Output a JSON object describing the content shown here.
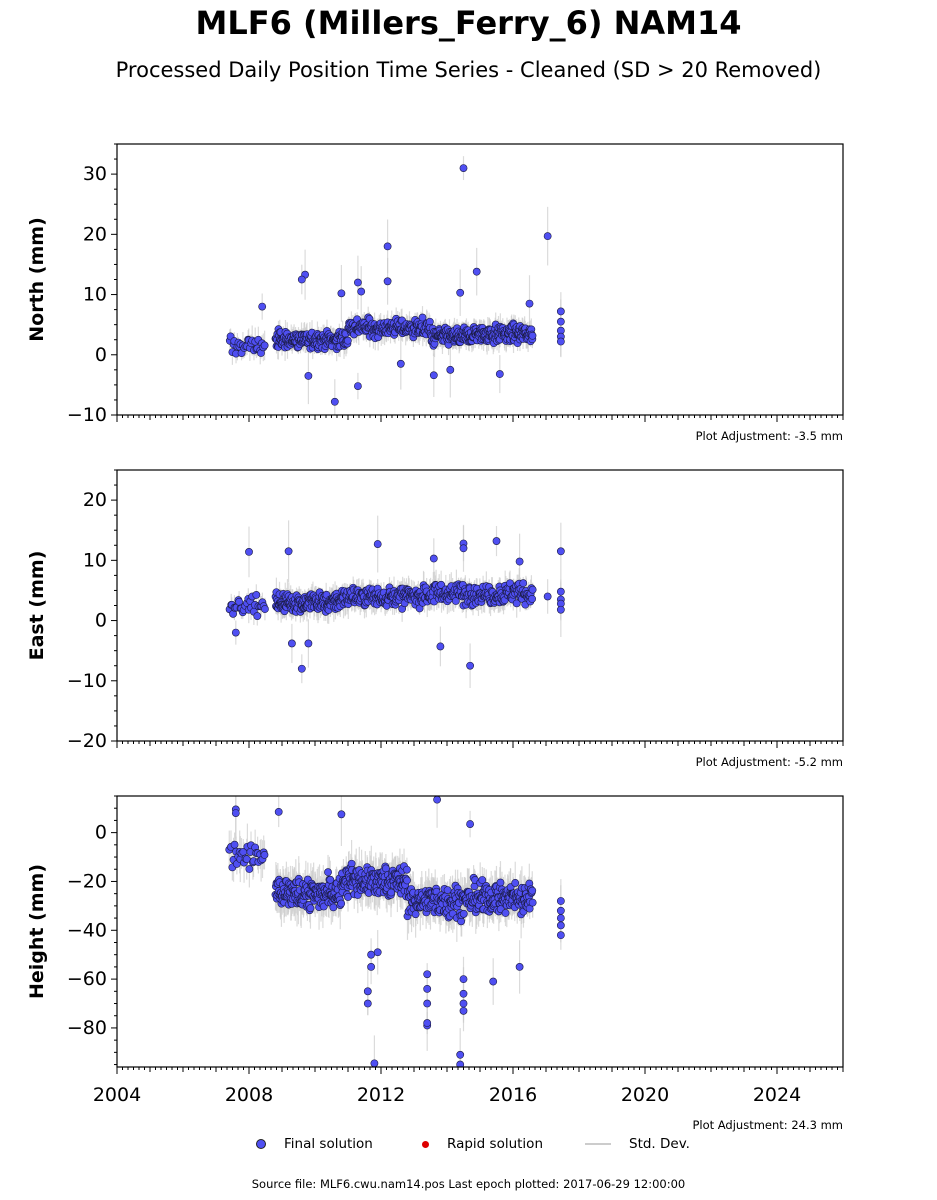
{
  "title": "MLF6 (Millers_Ferry_6) NAM14",
  "subtitle": "Processed Daily Position Time Series - Cleaned (SD > 20 Removed)",
  "chart_data": [
    {
      "type": "scatter",
      "ylabel": "North (mm)",
      "ylim": [
        -10,
        35
      ],
      "yticks": [
        -10,
        0,
        10,
        20,
        30
      ],
      "xlim": [
        2004,
        2026
      ],
      "adjustment": "Plot Adjustment: -3.5 mm",
      "clusters": [
        {
          "start": 2007.4,
          "end": 2008.5,
          "center": 1.5,
          "spread": 2.0,
          "count": 30
        },
        {
          "start": 2008.8,
          "end": 2011.0,
          "center": 2.5,
          "spread": 1.8,
          "count": 170
        },
        {
          "start": 2011.0,
          "end": 2013.5,
          "center": 4.5,
          "spread": 1.8,
          "count": 170
        },
        {
          "start": 2013.5,
          "end": 2014.8,
          "center": 3.0,
          "spread": 1.8,
          "count": 110
        },
        {
          "start": 2014.8,
          "end": 2016.6,
          "center": 3.5,
          "spread": 1.8,
          "count": 150
        }
      ],
      "outliers": [
        [
          2014.5,
          31.0
        ],
        [
          2017.05,
          19.7
        ],
        [
          2012.2,
          18.0
        ],
        [
          2012.2,
          12.2
        ],
        [
          2009.7,
          13.3
        ],
        [
          2009.6,
          12.5
        ],
        [
          2011.3,
          12.0
        ],
        [
          2011.4,
          10.5
        ],
        [
          2010.8,
          10.2
        ],
        [
          2014.4,
          10.3
        ],
        [
          2014.9,
          13.8
        ],
        [
          2008.4,
          8.0
        ],
        [
          2016.5,
          8.5
        ],
        [
          2010.6,
          -7.8
        ],
        [
          2011.3,
          -5.2
        ],
        [
          2013.6,
          -3.4
        ],
        [
          2015.6,
          -3.2
        ],
        [
          2009.8,
          -3.5
        ],
        [
          2014.1,
          -2.5
        ],
        [
          2012.6,
          -1.5
        ],
        [
          2017.45,
          7.2
        ],
        [
          2017.45,
          5.5
        ],
        [
          2017.45,
          4.0
        ],
        [
          2017.45,
          3.0
        ],
        [
          2017.45,
          2.2
        ]
      ]
    },
    {
      "type": "scatter",
      "ylabel": "East (mm)",
      "ylim": [
        -20,
        25
      ],
      "yticks": [
        -20,
        -10,
        0,
        10,
        20
      ],
      "xlim": [
        2004,
        2026
      ],
      "adjustment": "Plot Adjustment: -5.2 mm",
      "clusters": [
        {
          "start": 2007.4,
          "end": 2008.5,
          "center": 2.5,
          "spread": 1.8,
          "count": 30
        },
        {
          "start": 2008.8,
          "end": 2010.8,
          "center": 3.0,
          "spread": 2.0,
          "count": 170
        },
        {
          "start": 2010.8,
          "end": 2013.3,
          "center": 4.0,
          "spread": 2.0,
          "count": 170
        },
        {
          "start": 2013.3,
          "end": 2016.6,
          "center": 4.5,
          "spread": 2.2,
          "count": 200
        }
      ],
      "outliers": [
        [
          2008.0,
          11.4
        ],
        [
          2009.2,
          11.5
        ],
        [
          2011.9,
          12.7
        ],
        [
          2014.5,
          12.8
        ],
        [
          2014.5,
          12.0
        ],
        [
          2015.5,
          13.2
        ],
        [
          2013.6,
          10.3
        ],
        [
          2016.2,
          9.8
        ],
        [
          2017.05,
          4.0
        ],
        [
          2009.6,
          -8.0
        ],
        [
          2009.3,
          -3.8
        ],
        [
          2009.8,
          -3.8
        ],
        [
          2013.8,
          -4.3
        ],
        [
          2014.7,
          -7.5
        ],
        [
          2007.6,
          -2.0
        ],
        [
          2017.45,
          11.5
        ],
        [
          2017.45,
          4.8
        ],
        [
          2017.45,
          3.5
        ],
        [
          2017.45,
          2.8
        ],
        [
          2017.45,
          1.8
        ]
      ]
    },
    {
      "type": "scatter",
      "ylabel": "Height (mm)",
      "ylim": [
        -96,
        15
      ],
      "yticks": [
        -80,
        -60,
        -40,
        -20,
        0
      ],
      "xlim": [
        2004,
        2026
      ],
      "xticks": [
        2004,
        2008,
        2012,
        2016,
        2020,
        2024
      ],
      "adjustment": "Plot Adjustment: 24.3 mm",
      "clusters": [
        {
          "start": 2007.4,
          "end": 2008.5,
          "center": -10.0,
          "spread": 8.0,
          "count": 30
        },
        {
          "start": 2008.8,
          "end": 2010.8,
          "center": -25.0,
          "spread": 8.0,
          "count": 170
        },
        {
          "start": 2010.8,
          "end": 2012.8,
          "center": -20.0,
          "spread": 8.0,
          "count": 170
        },
        {
          "start": 2012.8,
          "end": 2014.8,
          "center": -28.0,
          "spread": 8.0,
          "count": 150
        },
        {
          "start": 2014.8,
          "end": 2016.6,
          "center": -27.0,
          "spread": 8.0,
          "count": 150
        }
      ],
      "outliers": [
        [
          2007.6,
          9.5
        ],
        [
          2007.6,
          8.0
        ],
        [
          2008.9,
          8.5
        ],
        [
          2010.8,
          7.5
        ],
        [
          2013.7,
          13.5
        ],
        [
          2014.7,
          3.5
        ],
        [
          2011.6,
          -70.0
        ],
        [
          2011.6,
          -65.0
        ],
        [
          2011.7,
          -55.0
        ],
        [
          2011.7,
          -50.0
        ],
        [
          2011.9,
          -49.0
        ],
        [
          2013.4,
          -79.0
        ],
        [
          2013.4,
          -78.0
        ],
        [
          2013.4,
          -70.0
        ],
        [
          2013.4,
          -64.0
        ],
        [
          2013.4,
          -58.0
        ],
        [
          2014.4,
          -91.0
        ],
        [
          2014.4,
          -95.0
        ],
        [
          2014.5,
          -73.0
        ],
        [
          2014.5,
          -70.0
        ],
        [
          2014.5,
          -66.0
        ],
        [
          2014.5,
          -60.0
        ],
        [
          2011.8,
          -94.5
        ],
        [
          2015.4,
          -61.0
        ],
        [
          2016.2,
          -55.0
        ],
        [
          2017.45,
          -28.0
        ],
        [
          2017.45,
          -32.0
        ],
        [
          2017.45,
          -35.0
        ],
        [
          2017.45,
          -38.0
        ],
        [
          2017.45,
          -42.0
        ]
      ]
    }
  ],
  "legend": {
    "final": "Final solution",
    "rapid": "Rapid solution",
    "stddev": "Std. Dev."
  },
  "colors": {
    "final": "#4f4ff2",
    "rapid": "#dd0000",
    "stddev": "#cccccc"
  },
  "source": "Source file: MLF6.cwu.nam14.pos  Last epoch plotted: 2017-06-29 12:00:00"
}
